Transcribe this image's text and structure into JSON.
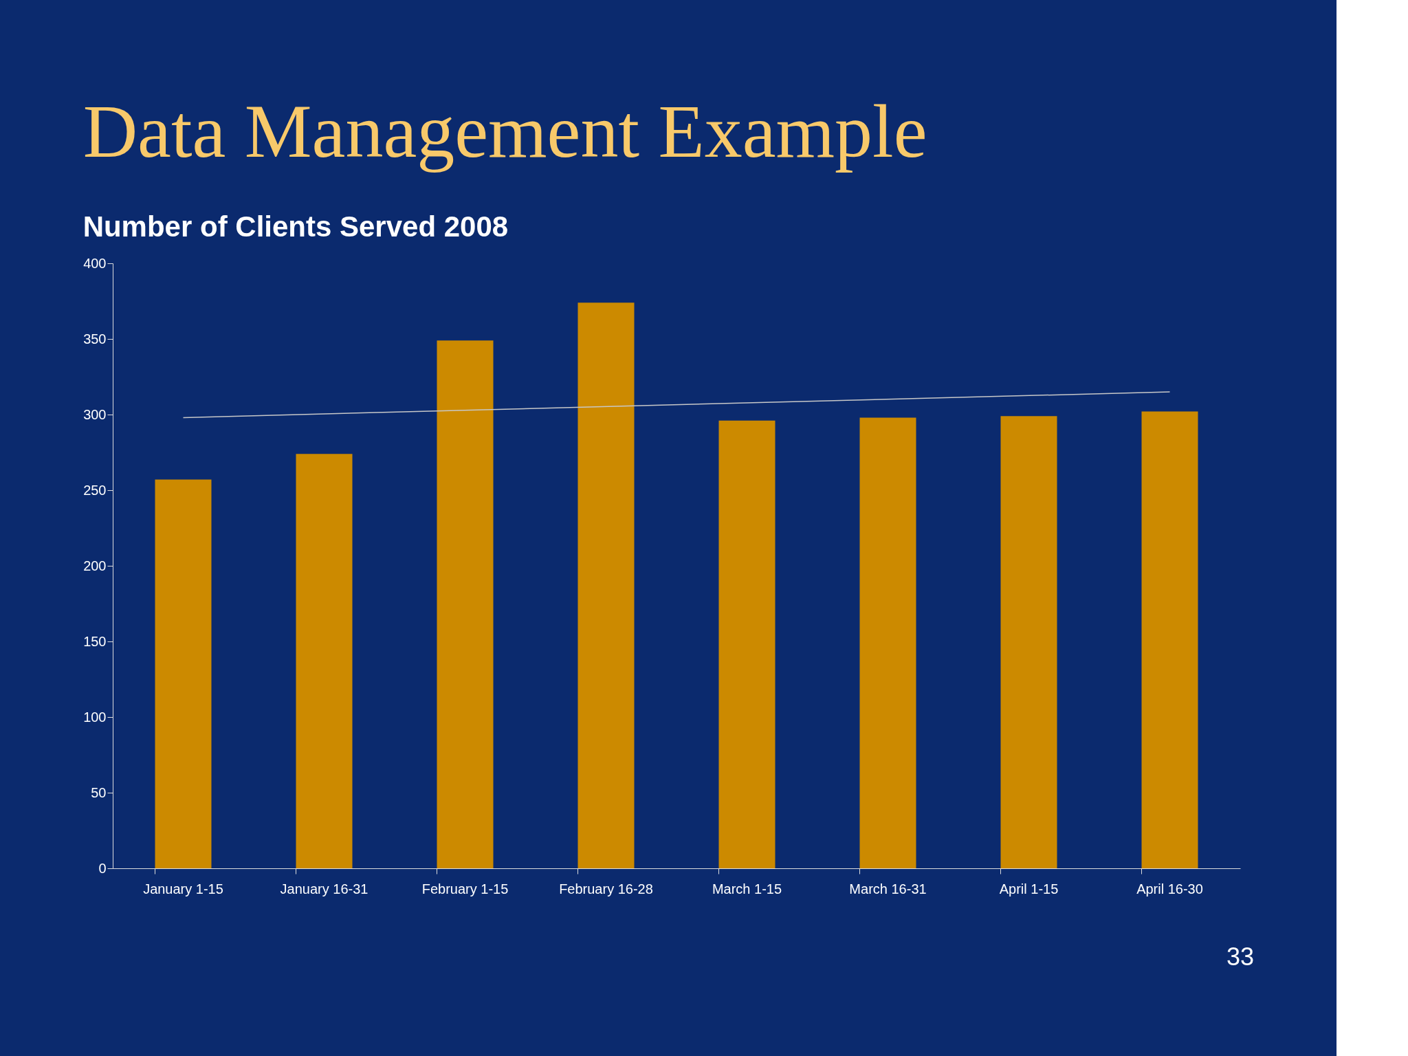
{
  "chart_data": {
    "type": "bar",
    "title": "Data Management  Example",
    "subtitle": "Number of Clients Served 2008",
    "categories": [
      "January 1-15",
      "January 16-31",
      "February 1-15",
      "February 16-28",
      "March 1-15",
      "March 16-31",
      "April 1-15",
      "April 16-30"
    ],
    "series": [
      {
        "color": "#cc8a00",
        "values": [
          257,
          274,
          349,
          374,
          296,
          298,
          299,
          302
        ]
      },
      {
        "type": "line",
        "color": "#c8c8c8",
        "x": [
          "January 1-15",
          "April 16-30"
        ],
        "values": [
          298,
          315
        ]
      }
    ],
    "ylim": [
      0,
      400
    ],
    "yticks": [
      0,
      50,
      100,
      150,
      200,
      250,
      300,
      350,
      400
    ],
    "grid": false,
    "annotations": [
      "33"
    ]
  }
}
